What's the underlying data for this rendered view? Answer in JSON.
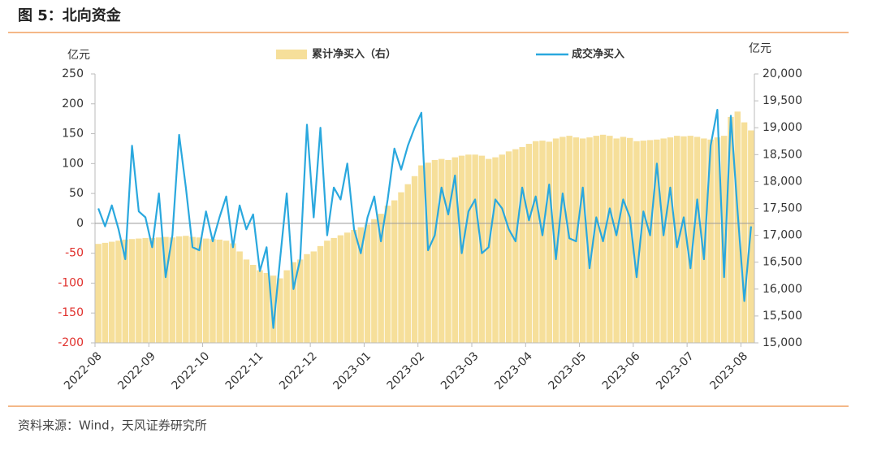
{
  "chart_data": {
    "type": "combo",
    "title": "图 5：北向资金",
    "y_unit": "亿元",
    "y2_unit": "亿元",
    "source": "资料来源：Wind，天风证券研究所",
    "categories": [
      "2022-08",
      null,
      null,
      null,
      null,
      null,
      null,
      null,
      "2022-09",
      null,
      null,
      null,
      null,
      null,
      null,
      null,
      "2022-10",
      null,
      null,
      null,
      null,
      null,
      null,
      null,
      "2022-11",
      null,
      null,
      null,
      null,
      null,
      null,
      null,
      "2022-12",
      null,
      null,
      null,
      null,
      null,
      null,
      null,
      "2023-01",
      null,
      null,
      null,
      null,
      null,
      null,
      null,
      "2023-02",
      null,
      null,
      null,
      null,
      null,
      null,
      null,
      "2023-03",
      null,
      null,
      null,
      null,
      null,
      null,
      null,
      "2023-04",
      null,
      null,
      null,
      null,
      null,
      null,
      null,
      "2023-05",
      null,
      null,
      null,
      null,
      null,
      null,
      null,
      "2023-06",
      null,
      null,
      null,
      null,
      null,
      null,
      null,
      "2023-07",
      null,
      null,
      null,
      null,
      null,
      null,
      null,
      "2023-08",
      null
    ],
    "series": [
      {
        "name": "累计净买入（右）",
        "type": "bar",
        "axis": "y2",
        "color": "#f6df9a",
        "values": [
          16840,
          16860,
          16880,
          16900,
          16920,
          16930,
          16940,
          16950,
          16950,
          16960,
          16970,
          16960,
          16980,
          16990,
          16970,
          16960,
          16940,
          16930,
          16920,
          16900,
          16850,
          16700,
          16550,
          16450,
          16350,
          16300,
          16250,
          16200,
          16350,
          16500,
          16550,
          16650,
          16700,
          16800,
          16900,
          16950,
          17000,
          17050,
          17100,
          17150,
          17200,
          17300,
          17400,
          17550,
          17650,
          17800,
          17950,
          18100,
          18300,
          18350,
          18400,
          18420,
          18400,
          18450,
          18480,
          18500,
          18500,
          18480,
          18420,
          18450,
          18500,
          18560,
          18600,
          18640,
          18700,
          18750,
          18760,
          18740,
          18800,
          18830,
          18850,
          18820,
          18800,
          18820,
          18850,
          18870,
          18850,
          18800,
          18830,
          18810,
          18750,
          18760,
          18770,
          18780,
          18800,
          18820,
          18850,
          18840,
          18850,
          18830,
          18800,
          18780,
          18820,
          18850,
          19200,
          19300,
          19100,
          18950
        ]
      },
      {
        "name": "成交净买入",
        "type": "line",
        "axis": "y",
        "color": "#2aa8de",
        "values": [
          25,
          -5,
          30,
          -10,
          -60,
          130,
          20,
          10,
          -40,
          50,
          -90,
          -20,
          148,
          60,
          -40,
          -45,
          20,
          -30,
          10,
          45,
          -40,
          30,
          -10,
          15,
          -80,
          -40,
          -175,
          -60,
          50,
          -110,
          -60,
          165,
          10,
          160,
          -20,
          60,
          40,
          100,
          -10,
          -50,
          10,
          45,
          -30,
          40,
          125,
          90,
          130,
          160,
          185,
          -45,
          -20,
          60,
          15,
          80,
          -50,
          20,
          40,
          -50,
          -40,
          40,
          25,
          -10,
          -30,
          60,
          5,
          45,
          -20,
          65,
          -60,
          50,
          -25,
          -30,
          60,
          -75,
          10,
          -30,
          25,
          -20,
          40,
          10,
          -90,
          20,
          -20,
          100,
          -20,
          60,
          -40,
          10,
          -75,
          40,
          -60,
          130,
          190,
          -90,
          180,
          20,
          -130,
          -5
        ]
      }
    ],
    "ylim": [
      -200,
      250
    ],
    "yticks": [
      -200,
      -150,
      -100,
      -50,
      0,
      50,
      100,
      150,
      200,
      250
    ],
    "y2lim": [
      15000,
      20000
    ],
    "y2ticks": [
      {
        "value": 15000,
        "label": "15,000"
      },
      {
        "value": 15500,
        "label": "15,500"
      },
      {
        "value": 16000,
        "label": "16,000"
      },
      {
        "value": 16500,
        "label": "16,500"
      },
      {
        "value": 17000,
        "label": "17,000"
      },
      {
        "value": 17500,
        "label": "17,500"
      },
      {
        "value": 18000,
        "label": "18,000"
      },
      {
        "value": 18500,
        "label": "18,500"
      },
      {
        "value": 19000,
        "label": "19,000"
      },
      {
        "value": 19500,
        "label": "19,500"
      },
      {
        "value": 20000,
        "label": "20,000"
      }
    ],
    "negative_tick_color": "#e0302c",
    "accent_color": "#f0a060"
  }
}
